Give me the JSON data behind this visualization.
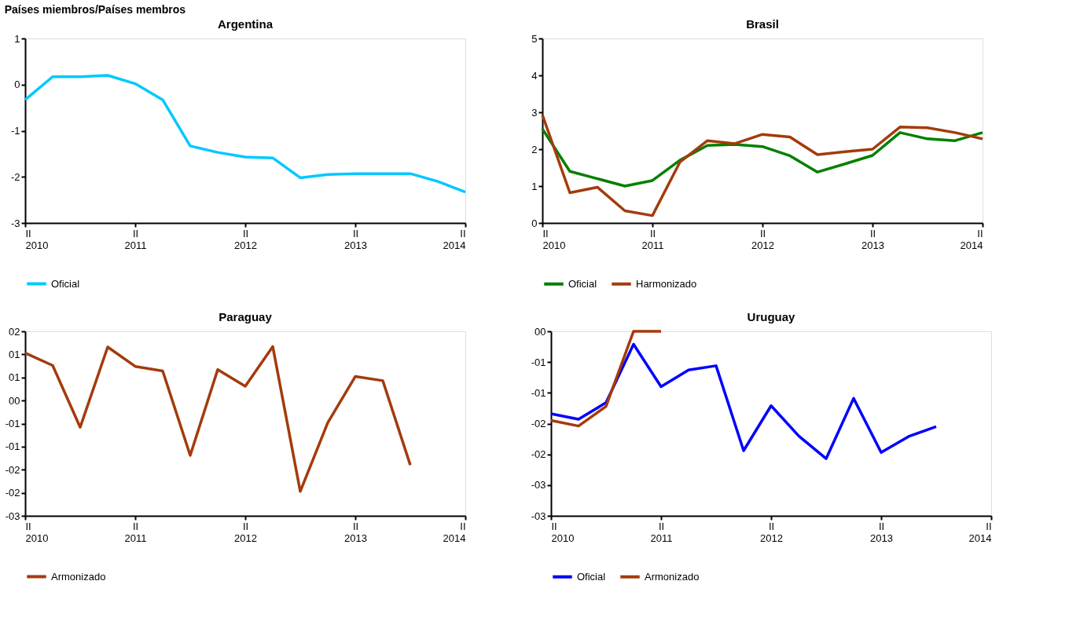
{
  "chart_data": [
    {
      "type": "line",
      "title": "Argentina",
      "annotations": [
        "Países miembros/Países membros"
      ],
      "categories": [
        "II 2010",
        null,
        null,
        null,
        "II 2011",
        null,
        null,
        null,
        "II 2012",
        null,
        null,
        null,
        "II 2013",
        null,
        null,
        null,
        "II 2014"
      ],
      "series": [
        {
          "name": "Oficial",
          "color": "#00c8ff",
          "values": [
            -0.33,
            0.17,
            0.17,
            0.2,
            0.02,
            -0.33,
            -1.33,
            -1.47,
            -1.57,
            -1.59,
            -2.02,
            -1.95,
            -1.93,
            -1.93,
            -1.93,
            -2.1,
            -2.33
          ]
        }
      ],
      "ylim": [
        -3,
        1
      ],
      "yticks": [
        -3,
        -2,
        -1,
        0,
        1
      ],
      "grid": false,
      "legend": "bottom"
    },
    {
      "type": "line",
      "title": "Brasil",
      "categories": [
        "II 2010",
        null,
        null,
        null,
        "II 2011",
        null,
        null,
        null,
        "II 2012",
        null,
        null,
        null,
        "II 2013",
        null,
        null,
        null,
        "II 2014"
      ],
      "series": [
        {
          "name": "Oficial",
          "color": "#008000",
          "values": [
            2.55,
            1.4,
            1.2,
            1.0,
            1.15,
            1.7,
            2.1,
            2.13,
            2.07,
            1.82,
            1.38,
            1.6,
            1.83,
            2.45,
            2.28,
            2.23,
            2.45
          ]
        },
        {
          "name": "Harmonizado",
          "color": "#a33b0c",
          "values": [
            2.93,
            0.82,
            0.97,
            0.33,
            0.2,
            1.65,
            2.23,
            2.15,
            2.4,
            2.33,
            1.85,
            1.93,
            2.0,
            2.6,
            2.58,
            2.45,
            2.28
          ]
        }
      ],
      "ylim": [
        0,
        5
      ],
      "yticks": [
        0,
        1,
        2,
        3,
        4,
        5
      ],
      "grid": false,
      "legend": "bottom"
    },
    {
      "type": "line",
      "title": "Paraguay",
      "categories": [
        "II 2010",
        null,
        null,
        null,
        "II 2011",
        null,
        null,
        null,
        "II 2012",
        null,
        null,
        null,
        "II 2013",
        null,
        null,
        null,
        "II 2014"
      ],
      "series": [
        {
          "name": "Armonizado",
          "color": "#a33b0c",
          "values": [
            1.03,
            0.76,
            -0.58,
            1.16,
            0.74,
            0.64,
            -1.19,
            0.67,
            0.31,
            1.17,
            -1.97,
            -0.48,
            0.52,
            0.43,
            -1.4,
            null,
            null
          ]
        }
      ],
      "ylim": [
        -2.5,
        1.5
      ],
      "yticks": [
        {
          "value": -2.5,
          "label": "-03"
        },
        {
          "value": -2,
          "label": "-02"
        },
        {
          "value": -1.5,
          "label": "-02"
        },
        {
          "value": -1,
          "label": "-01"
        },
        {
          "value": -0.5,
          "label": "-01"
        },
        {
          "value": 0,
          "label": "00"
        },
        {
          "value": 0.5,
          "label": "01"
        },
        {
          "value": 1,
          "label": "01"
        },
        {
          "value": 1.5,
          "label": "02"
        }
      ],
      "grid": false,
      "legend": "bottom"
    },
    {
      "type": "line",
      "title": "Uruguay",
      "categories": [
        "II 2010",
        null,
        null,
        null,
        "II 2011",
        null,
        null,
        null,
        "II 2012",
        null,
        null,
        null,
        "II 2013",
        null,
        null,
        null,
        "II 2014"
      ],
      "series": [
        {
          "name": "Oficial",
          "color": "#0000ff",
          "values": [
            -1.34,
            -1.43,
            -1.16,
            -0.21,
            -0.9,
            -0.63,
            -0.56,
            -1.94,
            -1.21,
            -1.7,
            -2.07,
            -1.09,
            -1.97,
            -1.71,
            -1.55,
            null,
            null
          ]
        },
        {
          "name": "Armonizado",
          "color": "#a33b0c",
          "values": [
            -1.45,
            -1.54,
            -1.22,
            0,
            0,
            null,
            null,
            null,
            null,
            null,
            null,
            null,
            null,
            null,
            null,
            null,
            null
          ]
        }
      ],
      "ylim": [
        -3,
        0
      ],
      "yticks": [
        {
          "value": -3,
          "label": "-03"
        },
        {
          "value": -2.5,
          "label": "-03"
        },
        {
          "value": -2,
          "label": "-02"
        },
        {
          "value": -1.5,
          "label": "-02"
        },
        {
          "value": -1,
          "label": "-01"
        },
        {
          "value": -0.5,
          "label": "-01"
        },
        {
          "value": 0,
          "label": "00"
        }
      ],
      "grid": false,
      "legend": "bottom"
    }
  ]
}
